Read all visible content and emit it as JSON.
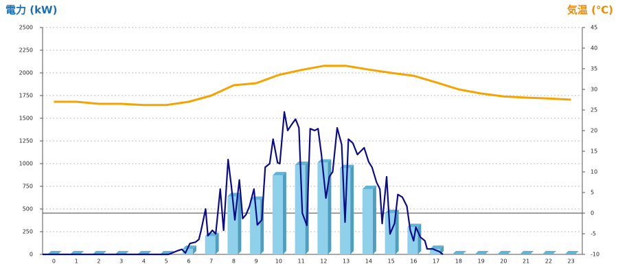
{
  "chart_data": {
    "type": "combo",
    "y_label": "電力 (kW)",
    "y2_label": "気温 (℃)",
    "y_label_color": "#1a6fb5",
    "y2_label_color": "#f08a00",
    "categories": [
      "0",
      "1",
      "2",
      "3",
      "4",
      "5",
      "6",
      "7",
      "8",
      "9",
      "10",
      "11",
      "12",
      "13",
      "14",
      "15",
      "16",
      "17",
      "18",
      "19",
      "20",
      "21",
      "22",
      "23"
    ],
    "xlim": [
      0,
      24
    ],
    "ylim": [
      0,
      2500
    ],
    "yticks": [
      0,
      250,
      500,
      750,
      1000,
      1250,
      1500,
      1750,
      2000,
      2250,
      2500
    ],
    "y2lim": [
      -10,
      45
    ],
    "y2ticks": [
      -10,
      -5,
      0,
      5,
      10,
      15,
      20,
      25,
      30,
      35,
      40,
      45
    ],
    "grid": true,
    "series": [
      {
        "type": "bar",
        "color": "#8fd0ea",
        "values": [
          0,
          0,
          0,
          0,
          0,
          0,
          60,
          200,
          640,
          600,
          870,
          985,
          1010,
          950,
          720,
          455,
          300,
          60,
          0,
          0,
          0,
          0,
          0,
          0
        ]
      },
      {
        "type": "line",
        "color": "#0a0a8c",
        "x": [
          0,
          5.6,
          6.0,
          6.2,
          6.35,
          6.55,
          6.8,
          6.95,
          7.05,
          7.25,
          7.35,
          7.55,
          7.7,
          7.9,
          8.05,
          8.25,
          8.4,
          8.55,
          8.75,
          8.9,
          9.05,
          9.2,
          9.4,
          9.55,
          9.75,
          9.9,
          10.1,
          10.25,
          10.45,
          10.55,
          10.75,
          10.9,
          11.1,
          11.25,
          11.4,
          11.55,
          11.75,
          11.9,
          12.1,
          12.25,
          12.4,
          12.6,
          12.75,
          12.9,
          13.1,
          13.3,
          13.45,
          13.6,
          13.8,
          14.0,
          14.3,
          14.5,
          14.65,
          14.85,
          15.0,
          15.1,
          15.3,
          15.45,
          15.65,
          15.8,
          16.0,
          16.2,
          16.35,
          16.5,
          16.6,
          16.8,
          17.0,
          17.1,
          17.35,
          17.65,
          17.8
        ],
        "values": [
          0,
          0,
          40,
          55,
          15,
          120,
          135,
          165,
          265,
          500,
          205,
          265,
          225,
          720,
          265,
          1045,
          740,
          380,
          820,
          395,
          440,
          530,
          720,
          325,
          380,
          960,
          1000,
          1270,
          1010,
          1000,
          1570,
          1365,
          1440,
          1490,
          1395,
          455,
          320,
          1385,
          1365,
          1385,
          1100,
          620,
          855,
          910,
          1395,
          1210,
          355,
          1270,
          1225,
          1100,
          1175,
          1020,
          960,
          795,
          720,
          340,
          855,
          225,
          340,
          660,
          630,
          530,
          265,
          150,
          300,
          190,
          150,
          60,
          60,
          30,
          0
        ]
      },
      {
        "type": "line",
        "axis": "y2",
        "color": "#f5a300",
        "values": [
          27,
          27,
          26.5,
          26.5,
          26.2,
          26.2,
          27,
          28.5,
          31,
          31.5,
          33.5,
          34.7,
          35.7,
          35.7,
          34.8,
          34,
          33.3,
          31.7,
          30,
          29,
          28.3,
          28,
          27.8,
          27.5
        ]
      }
    ]
  }
}
